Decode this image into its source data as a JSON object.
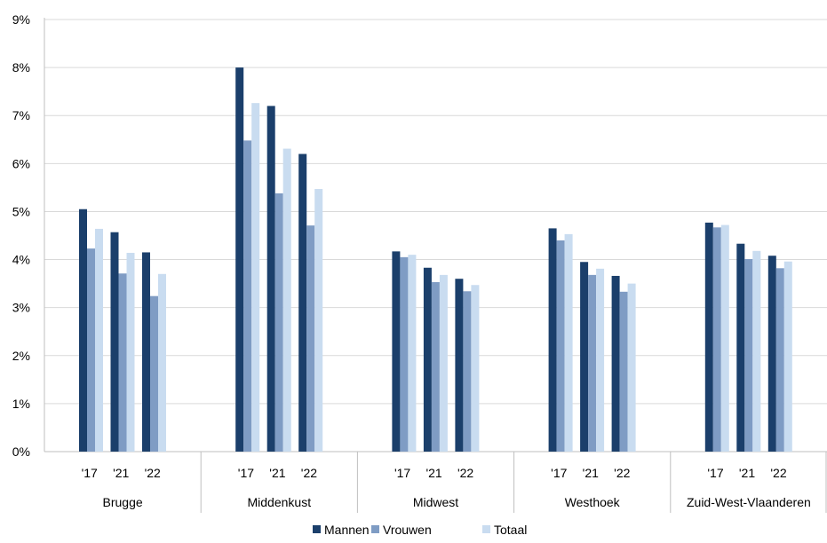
{
  "chart_data": {
    "type": "bar",
    "groups": [
      "Brugge",
      "Middenkust",
      "Midwest",
      "Westhoek",
      "Zuid-West-Vlaanderen"
    ],
    "years": [
      "'17",
      "'21",
      "'22"
    ],
    "series": [
      {
        "name": "Mannen",
        "color": "#1b3f6b",
        "values": [
          [
            5.05,
            4.57,
            4.15
          ],
          [
            8.0,
            7.2,
            6.2
          ],
          [
            4.17,
            3.83,
            3.6
          ],
          [
            4.65,
            3.95,
            3.66
          ],
          [
            4.77,
            4.33,
            4.08
          ]
        ]
      },
      {
        "name": "Vrouwen",
        "color": "#7f9cc4",
        "values": [
          [
            4.23,
            3.71,
            3.24
          ],
          [
            6.48,
            5.38,
            4.71
          ],
          [
            4.05,
            3.53,
            3.34
          ],
          [
            4.4,
            3.68,
            3.33
          ],
          [
            4.67,
            4.01,
            3.82
          ]
        ]
      },
      {
        "name": "Totaal",
        "color": "#c9dcf0",
        "values": [
          [
            4.64,
            4.14,
            3.7
          ],
          [
            7.26,
            6.31,
            5.47
          ],
          [
            4.1,
            3.68,
            3.47
          ],
          [
            4.53,
            3.81,
            3.5
          ],
          [
            4.72,
            4.18,
            3.96
          ]
        ]
      }
    ],
    "y_ticks": [
      "0%",
      "1%",
      "2%",
      "3%",
      "4%",
      "5%",
      "6%",
      "7%",
      "8%",
      "9%"
    ],
    "ylim": [
      0,
      9
    ],
    "grid": true,
    "legend": "bottom"
  }
}
